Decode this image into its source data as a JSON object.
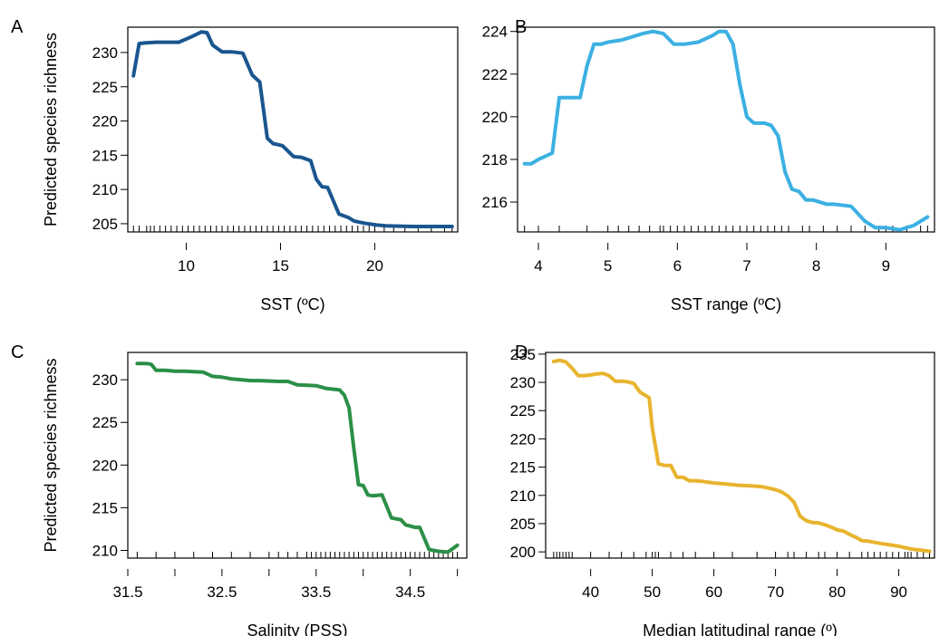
{
  "chart_data": [
    {
      "type": "line",
      "panel_label": "A",
      "xlabel": "SST (ºC)",
      "ylabel": "Predicted species richness",
      "xlim": [
        6.9,
        24.4
      ],
      "ylim": [
        203.8,
        233.7
      ],
      "xticks": [
        10,
        15,
        20
      ],
      "yticks": [
        205,
        210,
        215,
        220,
        225,
        230
      ],
      "color": "#1a568f",
      "x": [
        7.2,
        7.5,
        7.8,
        8.4,
        9,
        9.6,
        10.2,
        10.5,
        10.8,
        11.1,
        11.4,
        11.9,
        12.4,
        13,
        13.5,
        13.9,
        14.3,
        14.6,
        14.8,
        15.1,
        15.7,
        16.1,
        16.6,
        16.9,
        17.2,
        17.5,
        18.1,
        18.6,
        18.9,
        19.4,
        20.1,
        20.6,
        22,
        23.5,
        24.1
      ],
      "values": [
        226.6,
        231.3,
        231.4,
        231.5,
        231.5,
        231.5,
        232.2,
        232.6,
        233,
        232.9,
        231.1,
        230.1,
        230.1,
        229.9,
        226.7,
        225.7,
        217.5,
        216.7,
        216.6,
        216.4,
        214.8,
        214.7,
        214.2,
        211.5,
        210.4,
        210.3,
        206.4,
        205.9,
        205.4,
        205.1,
        204.8,
        204.7,
        204.6,
        204.6,
        204.6
      ],
      "rug": [
        7.2,
        7.5,
        7.9,
        8.1,
        8.3,
        8.6,
        8.9,
        9.2,
        9.5,
        9.8,
        10.1,
        10.4,
        10.7,
        11,
        11.3,
        11.6,
        11.9,
        12.2,
        12.5,
        12.8,
        13.1,
        13.4,
        13.7,
        14,
        14.3,
        14.6,
        14.9,
        15.2,
        15.5,
        15.8,
        16.1,
        16.4,
        16.7,
        17,
        17.3,
        17.6,
        17.9,
        18.2,
        18.5,
        18.8,
        19.1,
        19.4,
        19.7,
        20,
        20.5,
        21,
        21.6,
        22.3,
        23,
        23.7,
        24.1
      ]
    },
    {
      "type": "line",
      "panel_label": "B",
      "xlabel": "SST range (ºC)",
      "ylabel": "",
      "xlim": [
        3.7,
        9.7
      ],
      "ylim": [
        214.6,
        224.2
      ],
      "xticks": [
        4,
        5,
        6,
        7,
        8,
        9
      ],
      "yticks": [
        216,
        218,
        220,
        222,
        224
      ],
      "color": "#3cb0e2",
      "x": [
        3.8,
        3.9,
        4,
        4.2,
        4.3,
        4.5,
        4.6,
        4.7,
        4.8,
        4.9,
        5,
        5.2,
        5.3,
        5.5,
        5.65,
        5.8,
        5.95,
        6.1,
        6.3,
        6.5,
        6.6,
        6.7,
        6.8,
        6.9,
        7,
        7.1,
        7.25,
        7.35,
        7.45,
        7.55,
        7.65,
        7.75,
        7.85,
        7.95,
        8.15,
        8.25,
        8.5,
        8.7,
        8.85,
        9,
        9.2,
        9.4,
        9.6
      ],
      "values": [
        217.8,
        217.8,
        218,
        218.3,
        220.9,
        220.9,
        220.9,
        222.4,
        223.4,
        223.4,
        223.5,
        223.6,
        223.7,
        223.9,
        224,
        223.9,
        223.4,
        223.4,
        223.5,
        223.8,
        224,
        224,
        223.4,
        221.5,
        220,
        219.7,
        219.7,
        219.6,
        219.1,
        217.4,
        216.6,
        216.5,
        216.1,
        216.1,
        215.9,
        215.9,
        215.8,
        215.1,
        214.8,
        214.8,
        214.7,
        214.9,
        215.3
      ],
      "rug": [
        3.8,
        4,
        4.3,
        4.7,
        5,
        5.15,
        5.3,
        5.45,
        5.6,
        5.75,
        5.8,
        5.9,
        6,
        6.1,
        6.2,
        6.3,
        6.4,
        6.5,
        6.6,
        6.7,
        6.8,
        6.9,
        7,
        7.1,
        7.2,
        7.3,
        7.4,
        7.5,
        7.6,
        7.8,
        7.9,
        8.1,
        8.3,
        8.5,
        8.7,
        8.9,
        9,
        9.1,
        9.3,
        9.5,
        9.6
      ]
    },
    {
      "type": "line",
      "panel_label": "C",
      "xlabel": "Salinity (PSS)",
      "ylabel": "Predicted species richness",
      "xlim": [
        31.5,
        35.1
      ],
      "ylim": [
        209.1,
        233.2
      ],
      "xticks": [
        31.5,
        32,
        32.5,
        33,
        33.5,
        34,
        34.5,
        35
      ],
      "xtick_labels": [
        "31.5",
        "",
        "32.5",
        "",
        "33.5",
        "",
        "34.5",
        ""
      ],
      "yticks": [
        210,
        215,
        220,
        225,
        230
      ],
      "color": "#2b8f47",
      "x": [
        31.6,
        31.65,
        31.7,
        31.75,
        31.8,
        31.9,
        32,
        32.1,
        32.3,
        32.4,
        32.5,
        32.6,
        32.7,
        32.8,
        32.9,
        33.1,
        33.2,
        33.3,
        33.5,
        33.6,
        33.75,
        33.8,
        33.85,
        33.9,
        33.95,
        34,
        34.05,
        34.1,
        34.2,
        34.3,
        34.4,
        34.45,
        34.55,
        34.6,
        34.7,
        34.8,
        34.9,
        35
      ],
      "values": [
        231.9,
        231.9,
        231.9,
        231.8,
        231.1,
        231.1,
        231,
        231,
        230.9,
        230.4,
        230.3,
        230.1,
        230,
        229.9,
        229.9,
        229.8,
        229.8,
        229.4,
        229.3,
        229,
        228.8,
        228.2,
        226.7,
        222,
        217.7,
        217.6,
        216.5,
        216.4,
        216.5,
        213.8,
        213.6,
        213,
        212.7,
        212.7,
        210.1,
        209.9,
        209.8,
        210.6
      ],
      "rug": [
        31.6,
        31.8,
        32,
        32.2,
        32.4,
        32.6,
        32.8,
        33,
        33.1,
        33.2,
        33.3,
        33.4,
        33.45,
        33.5,
        33.55,
        33.6,
        33.65,
        33.7,
        33.75,
        33.8,
        33.85,
        33.9,
        33.95,
        34,
        34.05,
        34.1,
        34.15,
        34.2,
        34.25,
        34.3,
        34.35,
        34.4,
        34.45,
        34.5,
        34.55,
        34.6,
        34.65,
        34.7,
        34.75,
        34.8,
        34.85,
        34.9,
        34.95,
        35
      ]
    },
    {
      "type": "line",
      "panel_label": "D",
      "xlabel": "Median latitudinal range (º)",
      "ylabel": "",
      "xlim": [
        32.7,
        95.8
      ],
      "ylim": [
        198.9,
        235.3
      ],
      "xticks": [
        40,
        50,
        60,
        70,
        80,
        90
      ],
      "yticks": [
        200,
        205,
        210,
        215,
        220,
        225,
        230,
        235
      ],
      "color": "#e8b42e",
      "x": [
        34,
        35,
        36,
        37,
        38,
        39,
        40,
        41,
        42,
        43,
        44,
        45,
        46,
        47,
        48,
        49.5,
        50,
        51,
        52,
        53,
        54,
        55,
        56,
        57,
        58,
        60,
        62,
        64,
        66,
        68,
        70,
        71,
        72,
        73,
        74,
        75,
        76,
        77,
        78,
        79,
        80,
        81,
        82,
        83,
        84,
        85,
        87,
        90,
        92,
        95
      ],
      "values": [
        233.7,
        233.9,
        233.6,
        232.5,
        231.2,
        231.2,
        231.3,
        231.5,
        231.6,
        231.2,
        230.2,
        230.2,
        230.1,
        229.8,
        228.3,
        227.3,
        222,
        215.6,
        215.3,
        215.3,
        213.2,
        213.2,
        212.6,
        212.6,
        212.5,
        212.2,
        212,
        211.8,
        211.7,
        211.5,
        211,
        210.6,
        209.9,
        208.8,
        206.3,
        205.5,
        205.2,
        205.1,
        204.8,
        204.4,
        203.9,
        203.7,
        203.1,
        202.6,
        202,
        201.9,
        201.5,
        201,
        200.5,
        200.1
      ],
      "rug": [
        34,
        34.5,
        35,
        35.5,
        36,
        36.5,
        37,
        40,
        43,
        45,
        47,
        49,
        50,
        50.5,
        51,
        53,
        55,
        57,
        60,
        63,
        67,
        70,
        72,
        73,
        75,
        77,
        78,
        80,
        82,
        84,
        85,
        86,
        87,
        88,
        89,
        90,
        91,
        91.5,
        92,
        93,
        94,
        95
      ]
    }
  ]
}
